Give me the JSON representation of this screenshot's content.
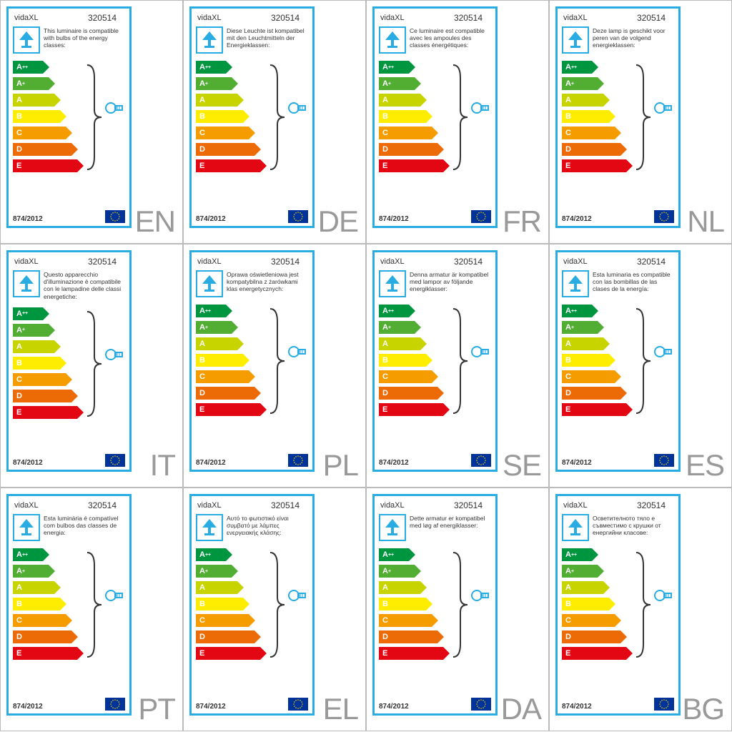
{
  "brand": "vidaXL",
  "product_number": "320514",
  "regulation": "874/2012",
  "border_color": "#28ace2",
  "lamp_icon_color": "#28ace2",
  "bulb_icon_color": "#28ace2",
  "lang_code_color": "#999999",
  "eu_flag_bg": "#003399",
  "eu_star_color": "#ffcc00",
  "energy_classes": [
    {
      "letter": "A",
      "suffix": "++",
      "color": "#009640",
      "width": 42
    },
    {
      "letter": "A",
      "suffix": "+",
      "color": "#52ae32",
      "width": 50
    },
    {
      "letter": "A",
      "suffix": "",
      "color": "#c8d400",
      "width": 58
    },
    {
      "letter": "B",
      "suffix": "",
      "color": "#ffed00",
      "width": 66
    },
    {
      "letter": "C",
      "suffix": "",
      "color": "#f59c00",
      "width": 74
    },
    {
      "letter": "D",
      "suffix": "",
      "color": "#ed6b06",
      "width": 82
    },
    {
      "letter": "E",
      "suffix": "",
      "color": "#e30613",
      "width": 90
    }
  ],
  "labels": [
    {
      "code": "EN",
      "text": "This luminaire is compatible with bulbs of the energy classes:"
    },
    {
      "code": "DE",
      "text": "Diese Leuchte ist kompatibel mit den Leuchtmitteln der Energieklassen:"
    },
    {
      "code": "FR",
      "text": "Ce luminaire est compatible avec les ampoules des classes énergétiques:"
    },
    {
      "code": "NL",
      "text": "Deze lamp is geschikt voor peren van de volgend energieklassen:"
    },
    {
      "code": "IT",
      "text": "Questo apparecchio d'illuminazione è compatibile con le lampadine delle classi energetiche:"
    },
    {
      "code": "PL",
      "text": "Oprawa oświetleniowa jest kompatybilna z żarówkami klas energetycznych:"
    },
    {
      "code": "SE",
      "text": "Denna armatur är kompatibel med lampor av följande energiklasser:"
    },
    {
      "code": "ES",
      "text": "Esta luminaria es compatible con las bombillas de las clases de la energía:"
    },
    {
      "code": "PT",
      "text": "Esta luminária é compatível com bulbos das classes de energia:"
    },
    {
      "code": "EL",
      "text": "Αυτό το φωτιστικό είναι συμβατό με λάμπες ενεργειακής κλάσης:"
    },
    {
      "code": "DA",
      "text": "Dette armatur er kompatibel med løg af energiklasser:"
    },
    {
      "code": "BG",
      "text": "Осветителното тяло е съвместимо с крушки от енергийни класове:"
    }
  ]
}
